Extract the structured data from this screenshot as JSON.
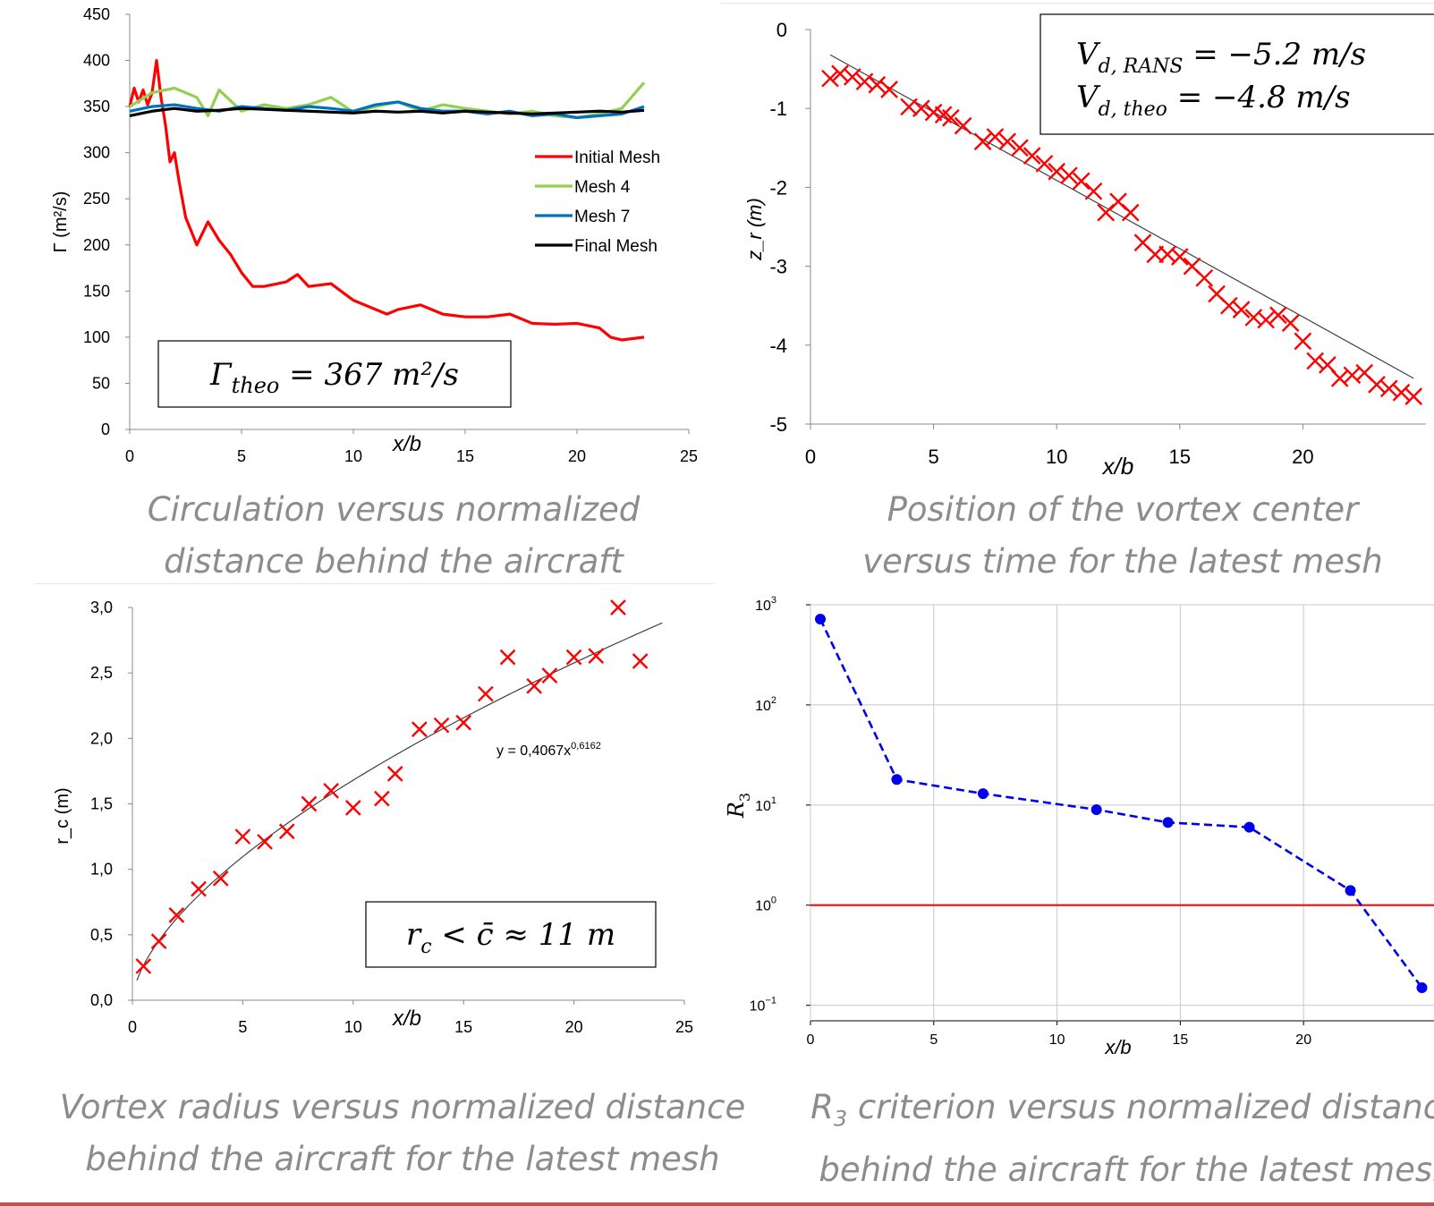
{
  "colors": {
    "initial": "#ff0000",
    "mesh4": "#92d050",
    "mesh7": "#0070c0",
    "final": "#000000",
    "marker": "#ff0000",
    "fit": "#404040",
    "r3": "#0000ee",
    "threshold": "#ff0000",
    "caption": "#8c8c8c"
  },
  "captions": {
    "tl": [
      "Circulation versus normalized",
      "distance behind the aircraft"
    ],
    "tr": [
      "Position of the vortex center",
      "versus time for the latest mesh"
    ],
    "bl": [
      "Vortex radius versus normalized distance",
      "behind the aircraft for the latest mesh"
    ],
    "br_sym": "R",
    "br_sub": "3",
    "br": [
      " criterion versus normalized distance",
      "behind the aircraft for the latest mesh"
    ]
  },
  "chart_data": [
    {
      "id": "circulation",
      "type": "line",
      "xlabel": "x/b",
      "ylabel": "Γ (m²/s)",
      "xlim": [
        0,
        25
      ],
      "ylim": [
        0,
        450
      ],
      "xticks": [
        0,
        5,
        10,
        15,
        20,
        25
      ],
      "yticks": [
        0,
        50,
        100,
        150,
        200,
        250,
        300,
        350,
        400,
        450
      ],
      "legend_position": "right",
      "annotation": {
        "symbol": "Γ",
        "sub": "theo",
        "text": " = 367 m²/s"
      },
      "series": [
        {
          "name": "Initial Mesh",
          "color": "#ff0000",
          "x": [
            0,
            0.2,
            0.4,
            0.6,
            0.8,
            1.0,
            1.2,
            1.4,
            1.6,
            1.8,
            2.0,
            2.2,
            2.5,
            3.0,
            3.2,
            3.5,
            4.0,
            4.5,
            5.0,
            5.5,
            6.0,
            7.0,
            7.5,
            8.0,
            9.0,
            10.0,
            11.0,
            11.5,
            12.0,
            13.0,
            14.0,
            15.0,
            16.0,
            17.0,
            18.0,
            19.0,
            20.0,
            21.0,
            21.5,
            22.0,
            23.0
          ],
          "y": [
            350,
            370,
            355,
            368,
            352,
            365,
            400,
            360,
            330,
            290,
            300,
            270,
            230,
            200,
            210,
            225,
            205,
            190,
            170,
            155,
            155,
            160,
            168,
            155,
            158,
            140,
            130,
            125,
            130,
            135,
            125,
            122,
            122,
            125,
            115,
            114,
            115,
            110,
            100,
            97,
            100
          ]
        },
        {
          "name": "Mesh 4",
          "color": "#92d050",
          "x": [
            0,
            1,
            2,
            3,
            3.5,
            4,
            5,
            6,
            7,
            8,
            9,
            10,
            11,
            12,
            13,
            14,
            15,
            16,
            17,
            18,
            19,
            20,
            21,
            22,
            22.5,
            23
          ],
          "y": [
            350,
            365,
            370,
            360,
            340,
            368,
            345,
            352,
            348,
            352,
            360,
            344,
            350,
            355,
            345,
            352,
            348,
            345,
            342,
            345,
            340,
            338,
            342,
            348,
            362,
            376
          ]
        },
        {
          "name": "Mesh 7",
          "color": "#0070c0",
          "x": [
            0,
            1,
            2,
            3,
            4,
            5,
            6,
            7,
            8,
            9,
            10,
            11,
            12,
            13,
            14,
            15,
            16,
            17,
            18,
            19,
            20,
            21,
            22,
            23
          ],
          "y": [
            345,
            350,
            352,
            348,
            345,
            350,
            348,
            346,
            350,
            348,
            345,
            352,
            355,
            348,
            345,
            345,
            342,
            345,
            340,
            342,
            338,
            340,
            342,
            350
          ]
        },
        {
          "name": "Final Mesh",
          "color": "#000000",
          "x": [
            0,
            1,
            2,
            3,
            4,
            5,
            6,
            7,
            8,
            9,
            10,
            11,
            12,
            13,
            14,
            15,
            16,
            17,
            18,
            19,
            20,
            21,
            22,
            23
          ],
          "y": [
            340,
            345,
            348,
            345,
            346,
            348,
            347,
            346,
            345,
            344,
            343,
            345,
            344,
            345,
            343,
            345,
            344,
            343,
            342,
            343,
            344,
            345,
            344,
            346
          ]
        }
      ]
    },
    {
      "id": "position",
      "type": "scatter",
      "xlabel": "x/b",
      "ylabel": "z_r (m)",
      "xlim": [
        0,
        25
      ],
      "ylim": [
        -5,
        0
      ],
      "xticks": [
        0,
        5,
        10,
        15,
        20
      ],
      "yticks": [
        0,
        -1,
        -2,
        -3,
        -4,
        -5
      ],
      "annotation": [
        {
          "symbol": "V",
          "sub": "d, RANS",
          "text": " = −5.2 m/s"
        },
        {
          "symbol": "V",
          "sub": "d, theo",
          "text": " = −4.8 m/s"
        }
      ],
      "fit": {
        "x": [
          0.8,
          24.5
        ],
        "y": [
          -0.32,
          -4.42
        ]
      },
      "points": {
        "x": [
          0.8,
          1.2,
          1.7,
          2.2,
          2.7,
          3.2,
          4.0,
          4.5,
          5.0,
          5.4,
          5.7,
          6.2,
          7.0,
          7.5,
          8.0,
          8.5,
          9.0,
          9.5,
          10.0,
          10.5,
          11.0,
          11.5,
          12.0,
          12.5,
          13.0,
          13.5,
          14.0,
          14.5,
          15.0,
          15.5,
          16.0,
          16.5,
          17.0,
          17.5,
          18.0,
          18.5,
          19.0,
          19.5,
          20.0,
          20.5,
          21.0,
          21.5,
          22.0,
          22.5,
          23.0,
          23.5,
          24.0,
          24.5
        ],
        "y": [
          -0.62,
          -0.56,
          -0.6,
          -0.66,
          -0.7,
          -0.76,
          -0.98,
          -1.0,
          -1.05,
          -1.08,
          -1.12,
          -1.22,
          -1.42,
          -1.36,
          -1.42,
          -1.5,
          -1.6,
          -1.7,
          -1.8,
          -1.85,
          -1.92,
          -2.05,
          -2.32,
          -2.18,
          -2.32,
          -2.7,
          -2.85,
          -2.85,
          -2.88,
          -3.0,
          -3.15,
          -3.35,
          -3.5,
          -3.55,
          -3.65,
          -3.68,
          -3.62,
          -3.72,
          -3.95,
          -4.2,
          -4.25,
          -4.42,
          -4.38,
          -4.35,
          -4.5,
          -4.55,
          -4.6,
          -4.65
        ]
      }
    },
    {
      "id": "radius",
      "type": "scatter",
      "xlabel": "x/b",
      "ylabel": "r_c (m)",
      "xlim": [
        0,
        25
      ],
      "ylim": [
        0,
        3
      ],
      "xticks": [
        0,
        5,
        10,
        15,
        20,
        25
      ],
      "yticks": [
        0,
        0.5,
        1,
        1.5,
        2,
        2.5,
        3
      ],
      "ytick_labels": [
        "0,0",
        "0,5",
        "1,0",
        "1,5",
        "2,0",
        "2,5",
        "3,0"
      ],
      "fit_label": "y = 0,4067x",
      "fit_label_exp": "0,6162",
      "annotation": {
        "symbol": "r",
        "sub": "c",
        "text": " < c̄ ≈ 11 m"
      },
      "fit": {
        "a": 0.4067,
        "b": 0.6162
      },
      "points": {
        "x": [
          0.5,
          1.2,
          2.0,
          3.0,
          4.0,
          5.0,
          6.0,
          7.0,
          8.0,
          9.0,
          10.0,
          11.3,
          11.9,
          13.0,
          14.0,
          15.0,
          16.0,
          17.0,
          18.2,
          18.9,
          20.0,
          21.0,
          22.0,
          23.0
        ],
        "y": [
          0.26,
          0.45,
          0.65,
          0.85,
          0.93,
          1.25,
          1.21,
          1.29,
          1.5,
          1.6,
          1.47,
          1.54,
          1.73,
          2.07,
          2.1,
          2.12,
          2.34,
          2.62,
          2.4,
          2.48,
          2.62,
          2.63,
          3.0,
          2.59
        ]
      }
    },
    {
      "id": "r3",
      "type": "line",
      "xlabel": "x/b",
      "ylabel_sym": "R",
      "ylabel_sub": "3",
      "xlim": [
        0,
        25
      ],
      "ylim": [
        0.07,
        1000
      ],
      "yscale": "log",
      "grid": true,
      "xticks": [
        0,
        5,
        10,
        15,
        20
      ],
      "yticks": [
        1000,
        100,
        10,
        1,
        0.1
      ],
      "ytick_base": "10",
      "ytick_exps": [
        "3",
        "2",
        "1",
        "0",
        "−1"
      ],
      "threshold": 1,
      "series": [
        {
          "name": "",
          "color": "#0000ee",
          "x": [
            0.4,
            3.5,
            7.0,
            11.6,
            14.5,
            17.8,
            21.9,
            24.8
          ],
          "y": [
            720,
            18,
            13,
            9,
            6.7,
            6,
            1.4,
            0.15
          ]
        }
      ]
    }
  ]
}
